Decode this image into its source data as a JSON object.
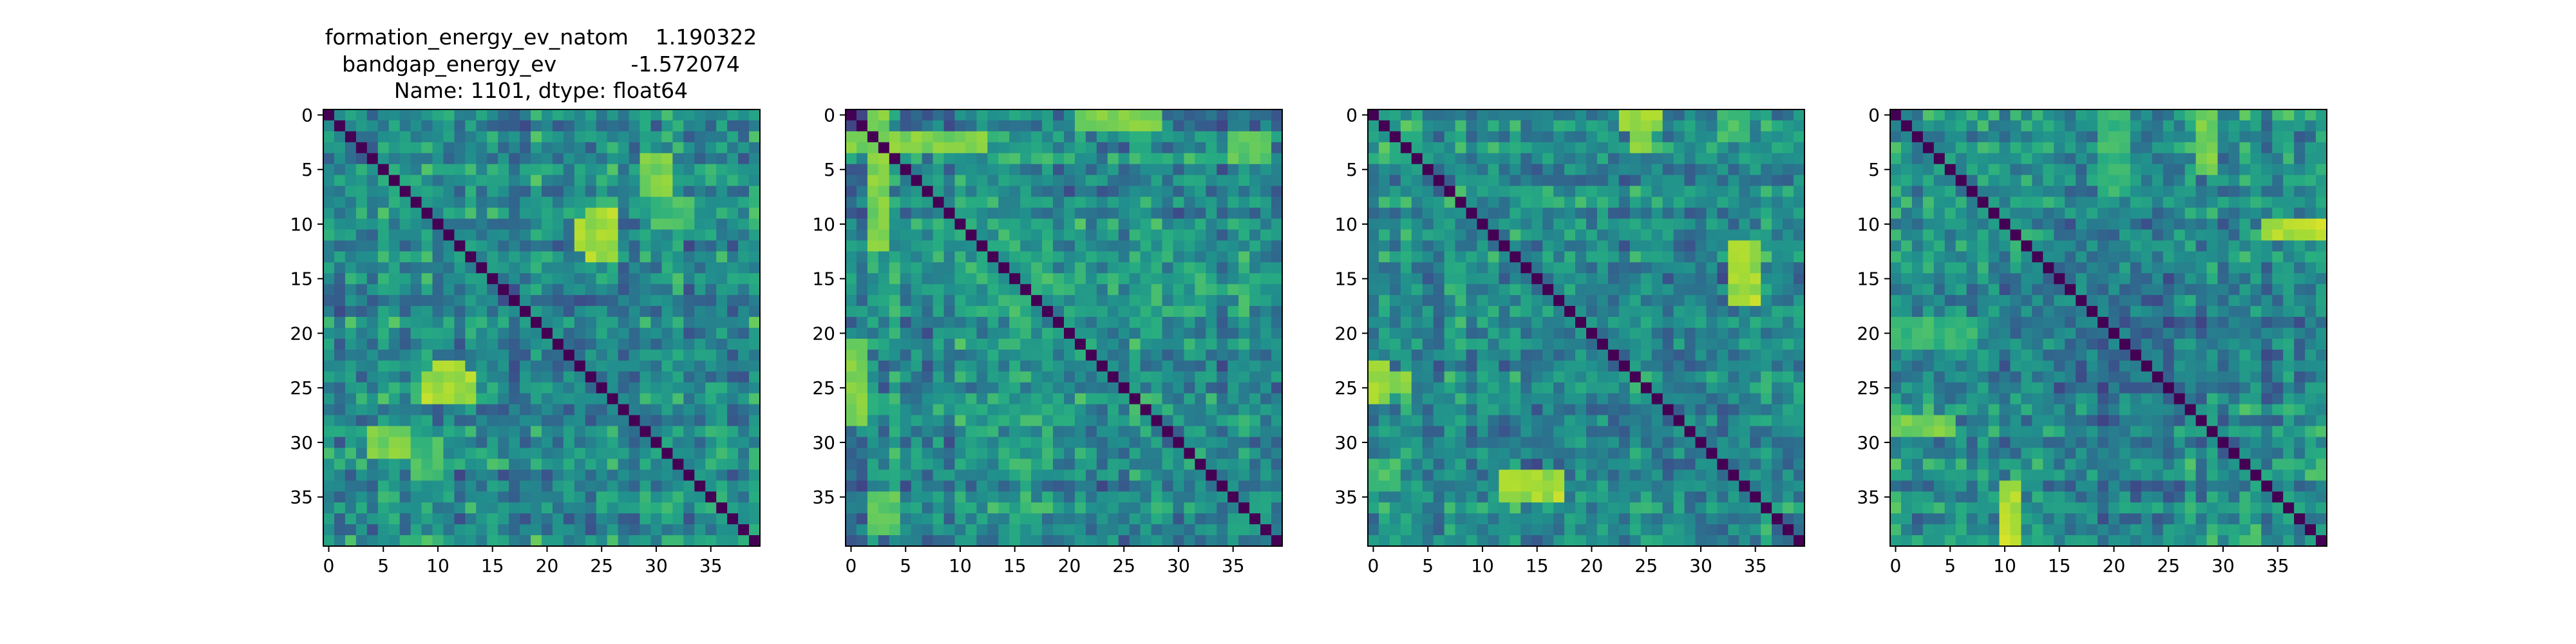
{
  "figure": {
    "title_lines": [
      "formation_energy_ev_natom    1.190322",
      "bandgap_energy_ev           -1.572074",
      "Name: 1101, dtype: float64"
    ]
  },
  "chart_data": [
    {
      "type": "heatmap",
      "title": "",
      "xlabel": "",
      "ylabel": "",
      "size": 40,
      "colormap": "viridis",
      "vmin": 0,
      "vmax": 1,
      "xticks": [
        0,
        5,
        10,
        15,
        20,
        25,
        30,
        35
      ],
      "yticks": [
        0,
        5,
        10,
        15,
        20,
        25,
        30,
        35
      ],
      "diagonal_value": 0,
      "seed": 1101,
      "hotspots": [
        {
          "rows": [
            24,
            26
          ],
          "cols": [
            9,
            13
          ],
          "value": 0.92
        },
        {
          "rows": [
            29,
            31
          ],
          "cols": [
            4,
            7
          ],
          "value": 0.85
        },
        {
          "rows": [
            10,
            12
          ],
          "cols": [
            23,
            25
          ],
          "value": 0.9
        },
        {
          "rows": [
            4,
            6
          ],
          "cols": [
            29,
            31
          ],
          "value": 0.85
        },
        {
          "rows": [
            8,
            10
          ],
          "cols": [
            30,
            33
          ],
          "value": 0.75
        }
      ]
    },
    {
      "type": "heatmap",
      "title": "",
      "xlabel": "",
      "ylabel": "",
      "size": 40,
      "colormap": "viridis",
      "vmin": 0,
      "vmax": 1,
      "xticks": [
        0,
        5,
        10,
        15,
        20,
        25,
        30,
        35
      ],
      "yticks": [
        0,
        5,
        10,
        15,
        20,
        25,
        30,
        35
      ],
      "diagonal_value": 0,
      "seed": 2202,
      "hotspots": [
        {
          "rows": [
            0,
            1
          ],
          "cols": [
            21,
            27
          ],
          "value": 0.95
        },
        {
          "rows": [
            2,
            3
          ],
          "cols": [
            0,
            12
          ],
          "value": 0.9
        },
        {
          "rows": [
            0,
            12
          ],
          "cols": [
            2,
            3
          ],
          "value": 0.85
        },
        {
          "rows": [
            21,
            28
          ],
          "cols": [
            0,
            1
          ],
          "value": 0.85
        },
        {
          "rows": [
            35,
            38
          ],
          "cols": [
            2,
            4
          ],
          "value": 0.8
        }
      ]
    },
    {
      "type": "heatmap",
      "title": "",
      "xlabel": "",
      "ylabel": "",
      "size": 40,
      "colormap": "viridis",
      "vmin": 0,
      "vmax": 1,
      "xticks": [
        0,
        5,
        10,
        15,
        20,
        25,
        30,
        35
      ],
      "yticks": [
        0,
        5,
        10,
        15,
        20,
        25,
        30,
        35
      ],
      "diagonal_value": 0,
      "seed": 3303,
      "hotspots": [
        {
          "rows": [
            33,
            35
          ],
          "cols": [
            12,
            17
          ],
          "value": 0.95
        },
        {
          "rows": [
            23,
            26
          ],
          "cols": [
            0,
            1
          ],
          "value": 0.9
        },
        {
          "rows": [
            0,
            3
          ],
          "cols": [
            24,
            25
          ],
          "value": 0.9
        },
        {
          "rows": [
            12,
            16
          ],
          "cols": [
            33,
            35
          ],
          "value": 0.9
        },
        {
          "rows": [
            0,
            2
          ],
          "cols": [
            32,
            34
          ],
          "value": 0.75
        }
      ]
    },
    {
      "type": "heatmap",
      "title": "",
      "xlabel": "",
      "ylabel": "",
      "size": 40,
      "colormap": "viridis",
      "vmin": 0,
      "vmax": 1,
      "xticks": [
        0,
        5,
        10,
        15,
        20,
        25,
        30,
        35
      ],
      "yticks": [
        0,
        5,
        10,
        15,
        20,
        25,
        30,
        35
      ],
      "diagonal_value": 0,
      "seed": 4404,
      "hotspots": [
        {
          "rows": [
            10,
            11
          ],
          "cols": [
            34,
            39
          ],
          "value": 0.95
        },
        {
          "rows": [
            34,
            37
          ],
          "cols": [
            10,
            11
          ],
          "value": 0.92
        },
        {
          "rows": [
            28,
            29
          ],
          "cols": [
            0,
            4
          ],
          "value": 0.9
        },
        {
          "rows": [
            0,
            5
          ],
          "cols": [
            28,
            29
          ],
          "value": 0.85
        },
        {
          "rows": [
            19,
            21
          ],
          "cols": [
            0,
            7
          ],
          "value": 0.72
        }
      ]
    }
  ]
}
